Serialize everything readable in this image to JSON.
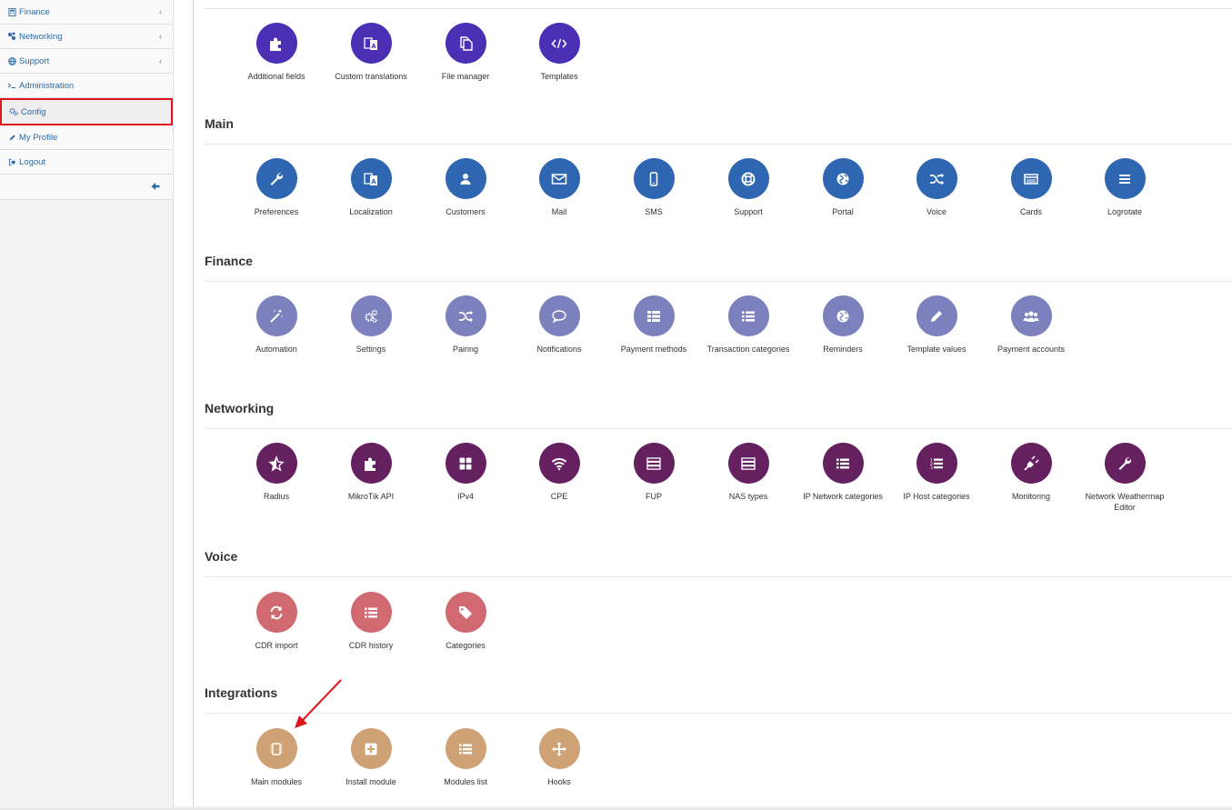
{
  "sidebar": {
    "items": [
      {
        "label": "Finance",
        "icon": "calculator-icon",
        "has_chevron": true
      },
      {
        "label": "Networking",
        "icon": "network-icon",
        "has_chevron": true
      },
      {
        "label": "Support",
        "icon": "globe-icon",
        "has_chevron": true
      },
      {
        "label": "Administration",
        "icon": "terminal-icon",
        "has_chevron": false
      },
      {
        "label": "Config",
        "icon": "gears-icon",
        "has_chevron": false,
        "active": true
      },
      {
        "label": "My Profile",
        "icon": "pencil-icon",
        "has_chevron": false
      },
      {
        "label": "Logout",
        "icon": "logout-icon",
        "has_chevron": false
      }
    ],
    "chevron": "‹",
    "collapse_icon": "arrow-left-icon"
  },
  "sections": {
    "top": {
      "items": [
        {
          "label": "Additional fields",
          "icon": "puzzle-icon"
        },
        {
          "label": "Custom translations",
          "icon": "translate-icon"
        },
        {
          "label": "File manager",
          "icon": "files-icon"
        },
        {
          "label": "Templates",
          "icon": "code-icon"
        }
      ]
    },
    "main": {
      "title": "Main",
      "items": [
        {
          "label": "Preferences",
          "icon": "wrench-icon"
        },
        {
          "label": "Localization",
          "icon": "translate-icon"
        },
        {
          "label": "Customers",
          "icon": "user-icon"
        },
        {
          "label": "Mail",
          "icon": "envelope-icon"
        },
        {
          "label": "SMS",
          "icon": "mobile-icon"
        },
        {
          "label": "Support",
          "icon": "lifebuoy-icon"
        },
        {
          "label": "Portal",
          "icon": "globe-icon"
        },
        {
          "label": "Voice",
          "icon": "shuffle-icon"
        },
        {
          "label": "Cards",
          "icon": "card-icon"
        },
        {
          "label": "Logrotate",
          "icon": "bars-icon"
        }
      ]
    },
    "finance": {
      "title": "Finance",
      "items": [
        {
          "label": "Automation",
          "icon": "magic-icon"
        },
        {
          "label": "Settings",
          "icon": "gears-icon"
        },
        {
          "label": "Pairing",
          "icon": "shuffle-icon"
        },
        {
          "label": "Notifications",
          "icon": "comment-icon"
        },
        {
          "label": "Payment methods",
          "icon": "list-icon"
        },
        {
          "label": "Transaction categories",
          "icon": "list-icon"
        },
        {
          "label": "Reminders",
          "icon": "globe-icon"
        },
        {
          "label": "Template values",
          "icon": "pencil-icon"
        },
        {
          "label": "Payment accounts",
          "icon": "users-icon"
        }
      ]
    },
    "networking": {
      "title": "Networking",
      "items": [
        {
          "label": "Radius",
          "icon": "star-icon"
        },
        {
          "label": "MikroTik API",
          "icon": "puzzle-icon"
        },
        {
          "label": "IPv4",
          "icon": "grid-icon"
        },
        {
          "label": "CPE",
          "icon": "wifi-icon"
        },
        {
          "label": "FUP",
          "icon": "server-icon"
        },
        {
          "label": "NAS types",
          "icon": "server-icon"
        },
        {
          "label": "IP Network categories",
          "icon": "list-icon"
        },
        {
          "label": "IP Host categories",
          "icon": "ordered-list-icon"
        },
        {
          "label": "Monitoring",
          "icon": "plug-icon"
        },
        {
          "label": "Network Weathermap Editor",
          "icon": "wrench-icon"
        }
      ]
    },
    "voice": {
      "title": "Voice",
      "items": [
        {
          "label": "CDR import",
          "icon": "refresh-icon"
        },
        {
          "label": "CDR history",
          "icon": "list-icon"
        },
        {
          "label": "Categories",
          "icon": "tags-icon"
        }
      ]
    },
    "integrations": {
      "title": "Integrations",
      "items": [
        {
          "label": "Main modules",
          "icon": "chip-icon"
        },
        {
          "label": "Install module",
          "icon": "plus-square-icon"
        },
        {
          "label": "Modules list",
          "icon": "list-icon"
        },
        {
          "label": "Hooks",
          "icon": "move-icon"
        }
      ]
    }
  },
  "colors": {
    "top": "#4b2fb5",
    "main": "#2e66b1",
    "finance": "#7c80bd",
    "networking": "#65205f",
    "voice": "#d16a70",
    "integrations": "#cfa275",
    "highlight": "#e0141c",
    "annotation_arrow": "#e0141c"
  }
}
